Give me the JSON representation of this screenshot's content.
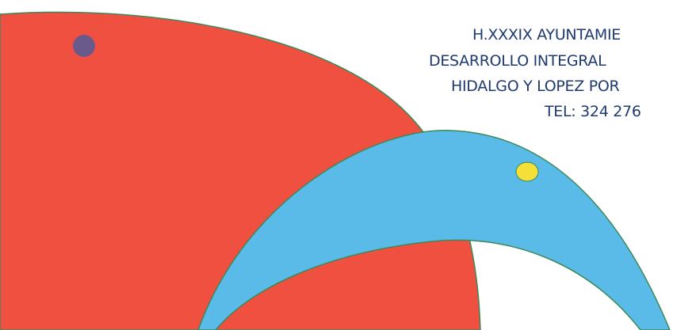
{
  "header": {
    "lines": [
      "H.XXXIX AYUNTAMIE",
      "DESARROLLO INTEGRAL",
      "HIDALGO Y LOPEZ POR",
      "TEL: 324 276"
    ]
  }
}
